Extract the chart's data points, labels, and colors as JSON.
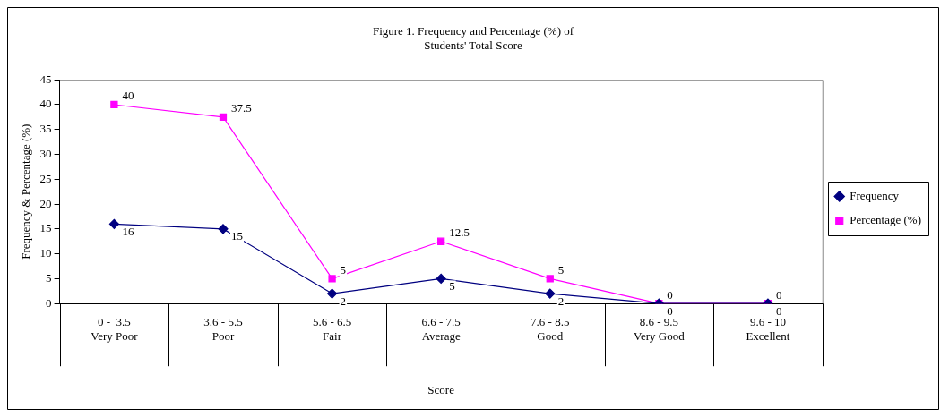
{
  "chart_data": {
    "type": "line",
    "title": "Figure 1. Frequency and Percentage (%) of\nStudents' Total Score",
    "xlabel": "Score",
    "ylabel": "Frequency & Percentage (%)",
    "categories": [
      "0 -  3.5\nVery Poor",
      "3.6 - 5.5\nPoor",
      "5.6 - 6.5\nFair",
      "6.6 - 7.5\nAverage",
      "7.6 - 8.5\nGood",
      "8.6 - 9.5\nVery Good",
      "9.6 - 10\nExcellent"
    ],
    "series": [
      {
        "name": "Frequency",
        "color": "#000080",
        "marker": "diamond",
        "values": [
          16,
          15,
          2,
          5,
          2,
          0,
          0
        ]
      },
      {
        "name": "Percentage (%)",
        "color": "#ff00ff",
        "marker": "square",
        "values": [
          40,
          37.5,
          5,
          12.5,
          5,
          0,
          0
        ]
      }
    ],
    "ylim": [
      0,
      45
    ],
    "yticks": [
      0,
      5,
      10,
      15,
      20,
      25,
      30,
      35,
      40,
      45
    ],
    "grid": false,
    "legend": "right",
    "data_labels": true,
    "line_style": "solid"
  }
}
